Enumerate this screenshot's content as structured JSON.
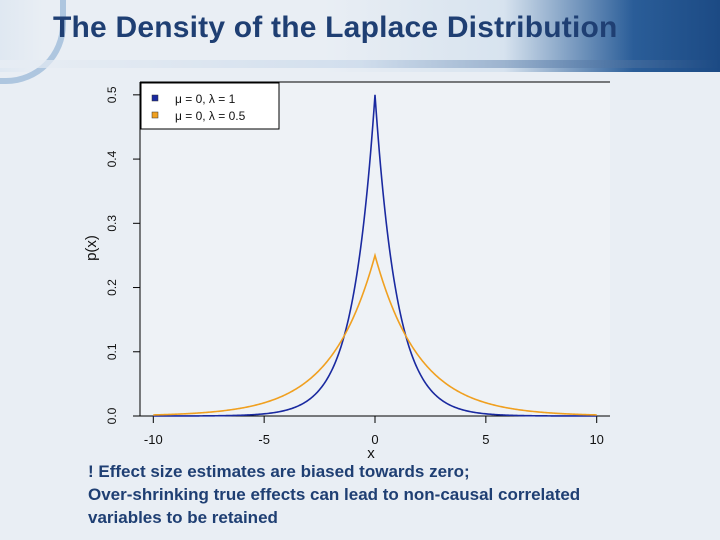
{
  "slide": {
    "title": "The Density of the Laplace Distribution"
  },
  "caption": {
    "lines": [
      "! Effect size estimates are biased towards zero;",
      "Over-shrinking true effects can lead to non-causal correlated",
      "variables to be retained"
    ]
  },
  "colors": {
    "series1": "#1a2aa0",
    "series2": "#f0a020",
    "title": "#1f3f73"
  },
  "chart_data": {
    "type": "line",
    "title": "",
    "xlabel": "x",
    "ylabel": "p(x)",
    "xlim": [
      -10.6,
      10.6
    ],
    "ylim": [
      0.0,
      0.52
    ],
    "xticks": [
      -10,
      -5,
      0,
      5,
      10
    ],
    "xtick_labels": [
      "-10",
      "-5",
      "0",
      "5",
      "10"
    ],
    "yticks": [
      0.0,
      0.1,
      0.2,
      0.3,
      0.4,
      0.5
    ],
    "ytick_labels": [
      "0.0",
      "0.1",
      "0.2",
      "0.3",
      "0.4",
      "0.5"
    ],
    "legend_position": "top-left",
    "series": [
      {
        "name": "μ = 0, λ = 1",
        "mu": 0,
        "lambda": 1,
        "x": [
          -10,
          -5,
          -3,
          -2,
          -1,
          -0.5,
          0,
          0.5,
          1,
          2,
          3,
          5,
          10
        ],
        "y": [
          2e-05,
          0.0034,
          0.0249,
          0.0677,
          0.1839,
          0.3033,
          0.5,
          0.3033,
          0.1839,
          0.0677,
          0.0249,
          0.0034,
          2e-05
        ]
      },
      {
        "name": "μ = 0, λ = 0.5",
        "mu": 0,
        "lambda": 0.5,
        "x": [
          -10,
          -5,
          -3,
          -2,
          -1,
          -0.5,
          0,
          0.5,
          1,
          2,
          3,
          5,
          10
        ],
        "y": [
          0.0017,
          0.0205,
          0.0558,
          0.092,
          0.1516,
          0.1947,
          0.25,
          0.1947,
          0.1516,
          0.092,
          0.0558,
          0.0205,
          0.0017
        ]
      }
    ]
  }
}
